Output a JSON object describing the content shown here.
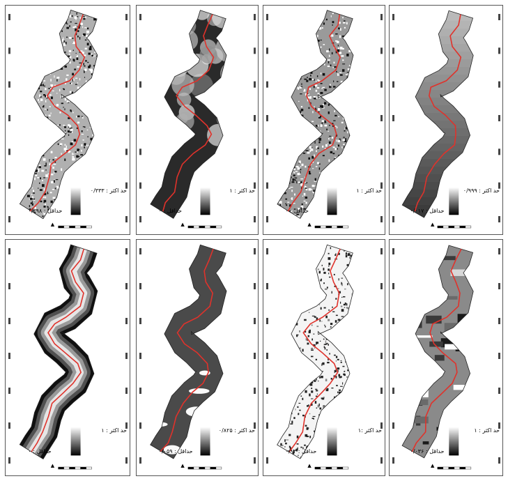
{
  "panels": [
    {
      "id": "a",
      "texture": "bw-noise",
      "max": "حد اکثر : ۰/۳۳۳",
      "min": "حداقل : ۰/۲۹۸"
    },
    {
      "id": "b",
      "texture": "smooth-dark",
      "max": "حد اکثر : ۱",
      "min": "حداقل : ۰"
    },
    {
      "id": "c",
      "texture": "bw-noise-fine",
      "max": "حد اکثر : ۱",
      "min": "حداقل : ۰"
    },
    {
      "id": "d",
      "texture": "gray-gradient",
      "max": "حد اکثر : ۰/۹۹۹",
      "min": "حداقل : ۰/۰۱۷"
    },
    {
      "id": "e",
      "texture": "distance-gradient",
      "max": "حد اکثر : ۱",
      "min": "حداقل : ۰"
    },
    {
      "id": "f",
      "texture": "dark-gray-white",
      "max": "حد اکثر : ۰/۸۲۵",
      "min": "حداقل : ۰/۰۵۹"
    },
    {
      "id": "g",
      "texture": "white-speckle",
      "max": "حد اکثر :۱",
      "min": "حداقل : ۰/۰۳"
    },
    {
      "id": "h",
      "texture": "gray-patches",
      "max": "حد اکثر : ۱",
      "min": "حداقل : ۰/۰۳۶"
    }
  ],
  "colors": {
    "river": "#e0322b",
    "border": "#555555"
  }
}
